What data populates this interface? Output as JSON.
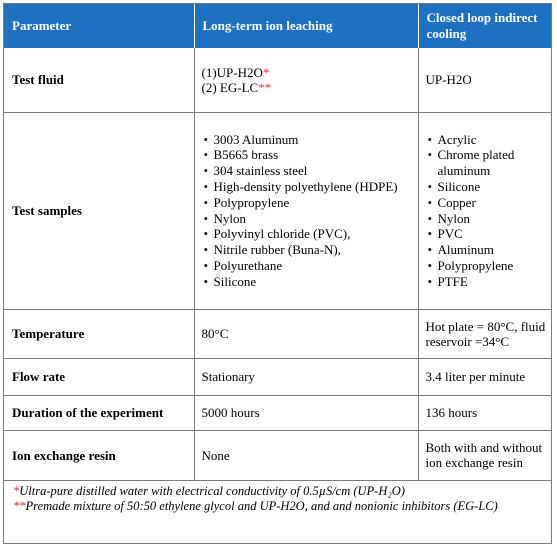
{
  "headers": [
    "Parameter",
    "Long-term ion leaching",
    "Closed loop indirect cooling"
  ],
  "rows": {
    "test_fluid": {
      "label": "Test fluid",
      "long_term": [
        {
          "text": "(1)UP-H2O",
          "mark": "*"
        },
        {
          "text": "(2) EG-LC",
          "mark": "**"
        }
      ],
      "closed_loop": "UP-H2O"
    },
    "test_samples": {
      "label": "Test samples",
      "long_term": [
        "3003 Aluminum",
        "B5665 brass",
        "304 stainless steel",
        "High-density polyethylene (HDPE)",
        "Polypropylene",
        "Nylon",
        "Polyvinyl chloride (PVC),",
        "Nitrile rubber (Buna-N),",
        "Polyurethane",
        "Silicone"
      ],
      "closed_loop": [
        "Acrylic",
        "Chrome plated aluminum",
        "Silicone",
        "Copper",
        "Nylon",
        "PVC",
        "Aluminum",
        "Polypropylene",
        "PTFE"
      ]
    },
    "temperature": {
      "label": "Temperature",
      "long_term": "80°C",
      "closed_loop": "Hot plate = 80°C, fluid reservoir =34°C"
    },
    "flow_rate": {
      "label": "Flow rate",
      "long_term": "Stationary",
      "closed_loop": "3.4 liter per minute"
    },
    "duration": {
      "label": "Duration of the experiment",
      "long_term": "5000 hours",
      "closed_loop": "136 hours"
    },
    "ion_exchange": {
      "label": "Ion exchange resin",
      "long_term": "None",
      "closed_loop": "Both with and without ion exchange resin"
    }
  },
  "footnotes": [
    {
      "mark": "*",
      "text": "Ultra-pure distilled water with electrical conductivity of 0.5µS/cm (UP-H₂O)"
    },
    {
      "mark": "**",
      "text": "Premade mixture of 50:50 ethylene glycol and UP-H2O, and and  nonionic inhibitors (EG-LC)"
    }
  ],
  "colors": {
    "header_bg": "#1e70c1",
    "header_text": "#ffffff",
    "footnote_mark": "#e03030",
    "border": "#7a7a7a"
  }
}
